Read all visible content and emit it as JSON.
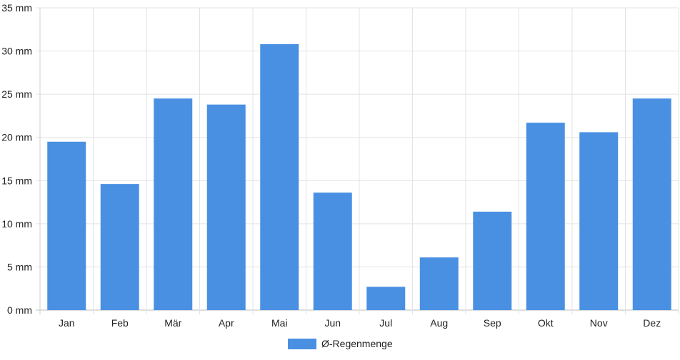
{
  "chart_data": {
    "type": "bar",
    "categories": [
      "Jan",
      "Feb",
      "Mär",
      "Apr",
      "Mai",
      "Jun",
      "Jul",
      "Aug",
      "Sep",
      "Okt",
      "Nov",
      "Dez"
    ],
    "series": [
      {
        "name": "Ø-Regenmenge",
        "values": [
          19.5,
          14.6,
          24.5,
          23.8,
          30.8,
          13.6,
          2.7,
          6.1,
          11.4,
          21.7,
          20.6,
          24.5
        ],
        "color": "#4a90e2"
      }
    ],
    "y_ticks": [
      "0 mm",
      "5 mm",
      "10 mm",
      "15 mm",
      "20 mm",
      "25 mm",
      "30 mm",
      "35 mm"
    ],
    "ylim": [
      0,
      35
    ],
    "y_step": 5,
    "grid": true,
    "legend_position": "bottom-center"
  }
}
